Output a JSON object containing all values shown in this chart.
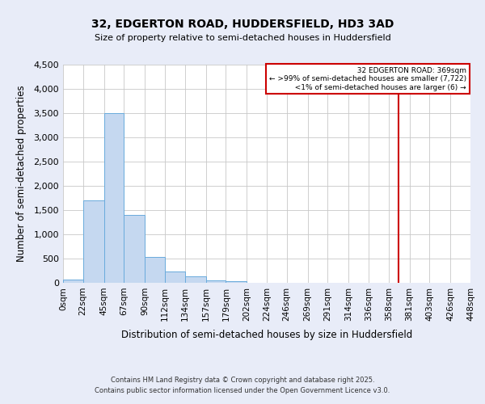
{
  "title": "32, EDGERTON ROAD, HUDDERSFIELD, HD3 3AD",
  "subtitle": "Size of property relative to semi-detached houses in Huddersfield",
  "xlabel": "Distribution of semi-detached houses by size in Huddersfield",
  "ylabel": "Number of semi-detached properties",
  "bin_labels": [
    "0sqm",
    "22sqm",
    "45sqm",
    "67sqm",
    "90sqm",
    "112sqm",
    "134sqm",
    "157sqm",
    "179sqm",
    "202sqm",
    "224sqm",
    "246sqm",
    "269sqm",
    "291sqm",
    "314sqm",
    "336sqm",
    "358sqm",
    "381sqm",
    "403sqm",
    "426sqm",
    "448sqm"
  ],
  "bin_edges": [
    0,
    22,
    45,
    67,
    90,
    112,
    134,
    157,
    179,
    202,
    224,
    246,
    269,
    291,
    314,
    336,
    358,
    381,
    403,
    426,
    448
  ],
  "bar_heights": [
    75,
    1700,
    3500,
    1400,
    540,
    240,
    130,
    55,
    30,
    0,
    0,
    0,
    0,
    0,
    0,
    0,
    0,
    0,
    0,
    0
  ],
  "bar_color": "#c5d8f0",
  "bar_edge_color": "#6aabdc",
  "ylim": [
    0,
    4500
  ],
  "yticks": [
    0,
    500,
    1000,
    1500,
    2000,
    2500,
    3000,
    3500,
    4000,
    4500
  ],
  "property_size": 369,
  "property_line_color": "#cc0000",
  "legend_title": "32 EDGERTON ROAD: 369sqm",
  "legend_line1": "← >99% of semi-detached houses are smaller (7,722)",
  "legend_line2": "<1% of semi-detached houses are larger (6) →",
  "footnote1": "Contains HM Land Registry data © Crown copyright and database right 2025.",
  "footnote2": "Contains public sector information licensed under the Open Government Licence v3.0.",
  "bg_color": "#e8ecf8",
  "plot_bg_color": "#ffffff",
  "grid_color": "#c8c8c8"
}
